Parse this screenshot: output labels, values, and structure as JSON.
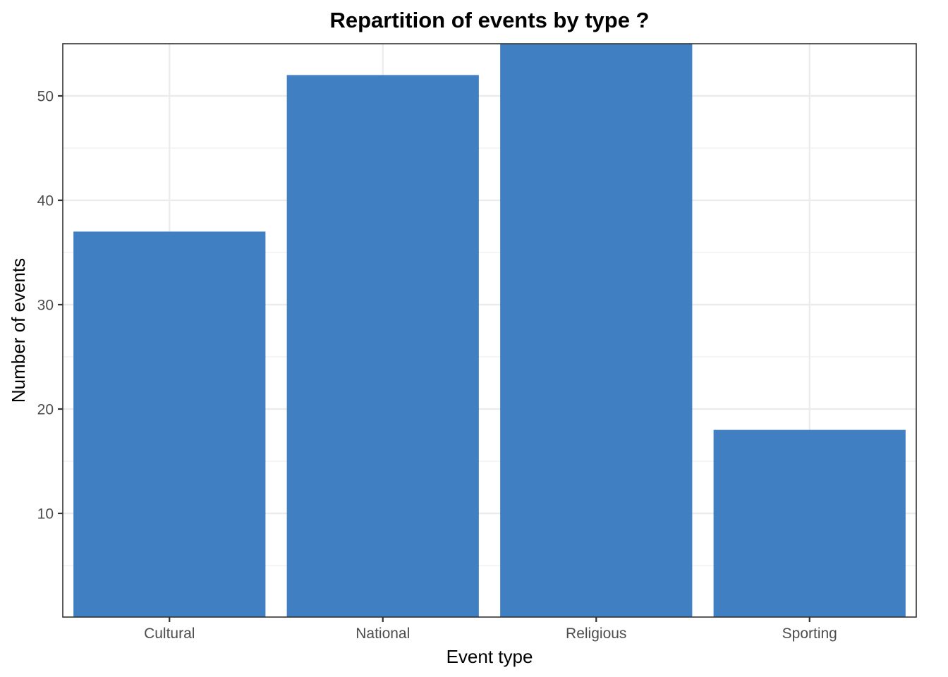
{
  "chart_data": {
    "type": "bar",
    "title": "Repartition of events by type ?",
    "xlabel": "Event type",
    "ylabel": "Number of events",
    "categories": [
      "Cultural",
      "National",
      "Religious",
      "Sporting"
    ],
    "values": [
      37,
      52,
      55,
      18
    ],
    "ylim": [
      0,
      55
    ],
    "yticks": [
      10,
      20,
      30,
      40,
      50
    ],
    "grid": true,
    "legend": "none",
    "colors": {
      "bar": "#4080c2",
      "background": "#ffffff",
      "grid": "#ebebeb",
      "border": "#333333"
    }
  }
}
